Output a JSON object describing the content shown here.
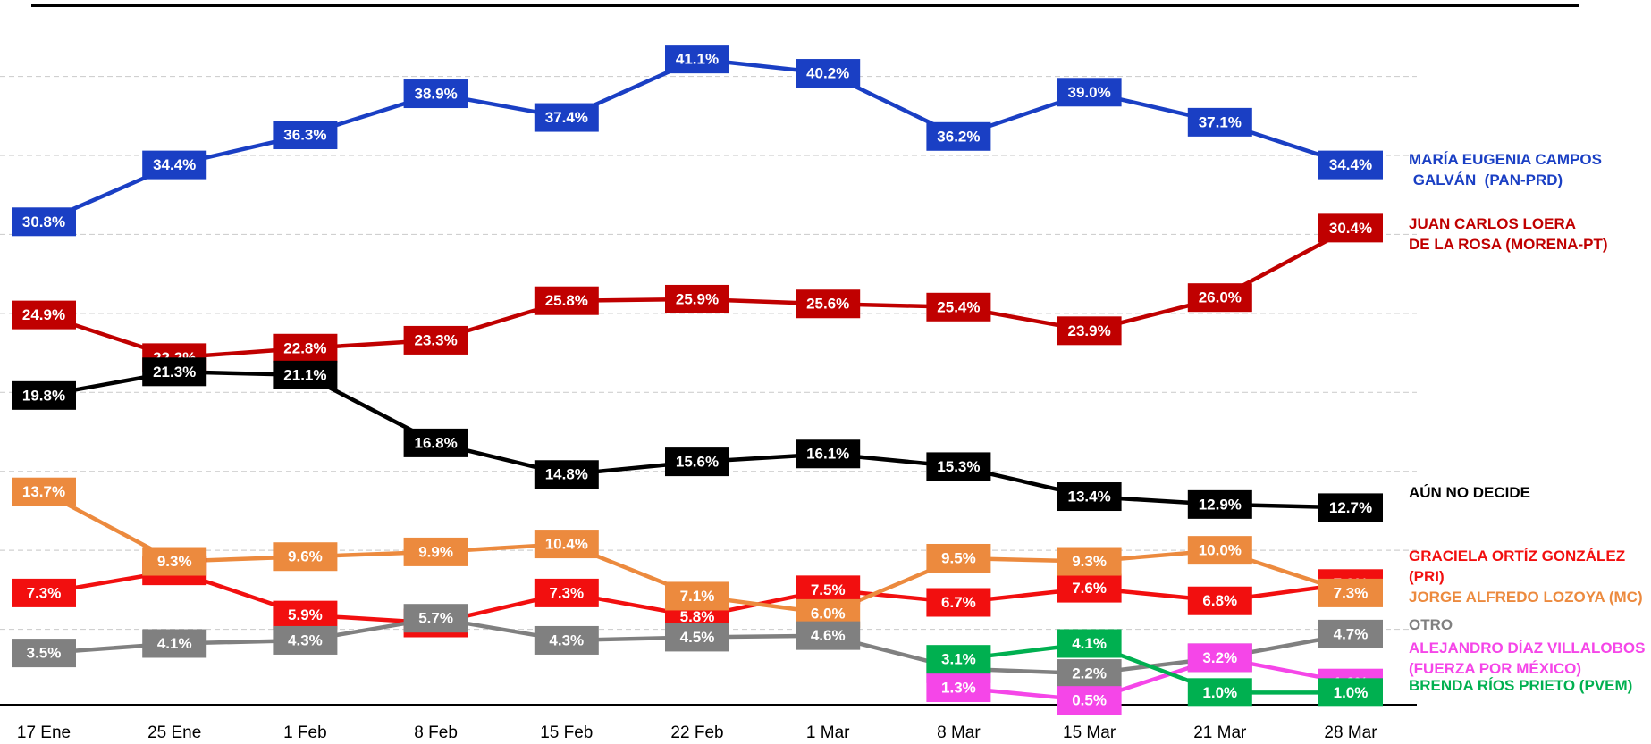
{
  "chart_data": {
    "type": "line",
    "categories": [
      "17 Ene",
      "25 Ene",
      "1 Feb",
      "8 Feb",
      "15 Feb",
      "22 Feb",
      "1 Mar",
      "8 Mar",
      "15 Mar",
      "21 Mar",
      "28 Mar"
    ],
    "ylim": [
      0,
      44.5
    ],
    "yticks": [
      5,
      10,
      15,
      20,
      25,
      30,
      35,
      40
    ],
    "grid": true,
    "series": [
      {
        "name": "MARÍA EUGENIA CAMPOS\n GALVÁN  (PAN-PRD)",
        "color": "#1a3fc4",
        "values": [
          30.8,
          34.4,
          36.3,
          38.9,
          37.4,
          41.1,
          40.2,
          36.2,
          39.0,
          37.1,
          34.4
        ],
        "value_labels": [
          "30.8%",
          "34.4%",
          "36.3%",
          "38.9%",
          "37.4%",
          "41.1%",
          "40.2%",
          "36.2%",
          "39.0%",
          "37.1%",
          "34.4%"
        ]
      },
      {
        "name": "JUAN CARLOS LOERA\nDE LA ROSA (MORENA-PT)",
        "color": "#c00000",
        "values": [
          24.9,
          22.2,
          22.8,
          23.3,
          25.8,
          25.9,
          25.6,
          25.4,
          23.9,
          26.0,
          30.4
        ],
        "value_labels": [
          "24.9%",
          "22.2%",
          "22.8%",
          "23.3%",
          "25.8%",
          "25.9%",
          "25.6%",
          "25.4%",
          "23.9%",
          "26.0%",
          "30.4%"
        ]
      },
      {
        "name": "AÚN NO DECIDE",
        "color": "#000000",
        "values": [
          19.8,
          21.3,
          21.1,
          16.8,
          14.8,
          15.6,
          16.1,
          15.3,
          13.4,
          12.9,
          12.7
        ],
        "value_labels": [
          "19.8%",
          "21.3%",
          "21.1%",
          "16.8%",
          "14.8%",
          "15.6%",
          "16.1%",
          "15.3%",
          "13.4%",
          "12.9%",
          "12.7%"
        ]
      },
      {
        "name": "GRACIELA ORTÍZ GONZÁLEZ\n(PRI)",
        "color": "#f20f0f",
        "values": [
          7.3,
          8.7,
          5.9,
          5.4,
          7.3,
          5.8,
          7.5,
          6.7,
          7.6,
          6.8,
          7.9
        ],
        "value_labels": [
          "7.3%",
          "8.7%",
          "5.9%",
          "5.4%",
          "7.3%",
          "5.8%",
          "7.5%",
          "6.7%",
          "7.6%",
          "6.8%",
          "7.9%"
        ]
      },
      {
        "name": "JORGE ALFREDO LOZOYA (MC)",
        "color": "#ec8a3e",
        "values": [
          13.7,
          9.3,
          9.6,
          9.9,
          10.4,
          7.1,
          6.0,
          9.5,
          9.3,
          10.0,
          7.3
        ],
        "value_labels": [
          "13.7%",
          "9.3%",
          "9.6%",
          "9.9%",
          "10.4%",
          "7.1%",
          "6.0%",
          "9.5%",
          "9.3%",
          "10.0%",
          "7.3%"
        ]
      },
      {
        "name": "OTRO",
        "color": "#808080",
        "values": [
          3.5,
          4.1,
          4.3,
          5.7,
          4.3,
          4.5,
          4.6,
          2.5,
          2.2,
          3.2,
          4.7
        ],
        "value_labels": [
          "3.5%",
          "4.1%",
          "4.3%",
          "5.7%",
          "4.3%",
          "4.5%",
          "4.6%",
          "2.5%",
          "2.2%",
          "3.2%",
          "4.7%"
        ]
      },
      {
        "name": "ALEJANDRO DÍAZ VILLALOBOS\n(FUERZA POR MÉXICO)",
        "color": "#f546e8",
        "values": [
          null,
          null,
          null,
          null,
          null,
          null,
          null,
          1.3,
          0.5,
          3.2,
          1.6
        ],
        "value_labels": [
          null,
          null,
          null,
          null,
          null,
          null,
          null,
          "1.3%",
          "0.5%",
          "3.2%",
          "1.6%"
        ]
      },
      {
        "name": "BRENDA RÍOS PRIETO (PVEM)",
        "color": "#00b050",
        "values": [
          null,
          null,
          null,
          null,
          null,
          null,
          null,
          3.1,
          4.1,
          1.0,
          1.0
        ],
        "value_labels": [
          null,
          null,
          null,
          null,
          null,
          null,
          null,
          "3.1%",
          "4.1%",
          "1.0%",
          "1.0%"
        ]
      }
    ]
  }
}
